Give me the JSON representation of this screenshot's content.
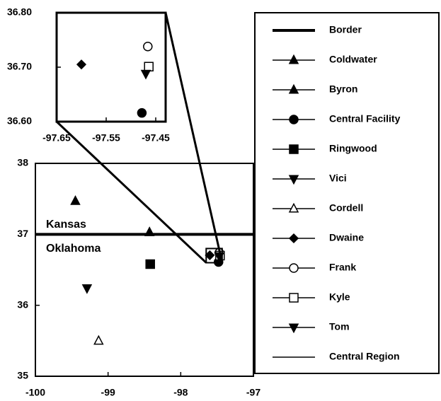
{
  "chart_data": [
    {
      "type": "scatter",
      "xlim": [
        -100,
        -97
      ],
      "ylim": [
        35,
        38
      ],
      "xticks": [
        -100,
        -99,
        -98,
        -97
      ],
      "yticks": [
        35,
        36,
        37,
        38
      ],
      "annotations": [
        "Kansas",
        "Oklahoma"
      ],
      "series": [
        {
          "name": "Border",
          "kind": "line",
          "color": "#000000",
          "x": [
            -100,
            -97
          ],
          "y": [
            37,
            37
          ]
        },
        {
          "name": "Coldwater",
          "marker": "triangle",
          "filled": true,
          "color": "#000000",
          "x": [
            -99.45
          ],
          "y": [
            37.47
          ]
        },
        {
          "name": "Byron",
          "marker": "triangle",
          "filled": true,
          "color": "#000000",
          "x": [
            -98.43
          ],
          "y": [
            37.03
          ]
        },
        {
          "name": "Central Facility",
          "marker": "circle",
          "filled": true,
          "color": "#000000",
          "x": [
            -97.48
          ],
          "y": [
            36.61
          ]
        },
        {
          "name": "Ringwood",
          "marker": "square",
          "filled": true,
          "color": "#000000",
          "x": [
            -98.42
          ],
          "y": [
            36.58
          ]
        },
        {
          "name": "Vici",
          "marker": "tridown",
          "filled": true,
          "color": "#000000",
          "x": [
            -99.29
          ],
          "y": [
            36.24
          ]
        },
        {
          "name": "Cordell",
          "marker": "triangle",
          "filled": false,
          "color": "#000000",
          "x": [
            -99.13
          ],
          "y": [
            35.5
          ]
        },
        {
          "name": "Dwaine",
          "marker": "diamond",
          "filled": true,
          "color": "#000000",
          "x": [
            -97.6
          ],
          "y": [
            36.705
          ]
        },
        {
          "name": "Frank",
          "marker": "circle",
          "filled": false,
          "color": "#000000",
          "x": [
            -97.47
          ],
          "y": [
            36.74
          ]
        },
        {
          "name": "Kyle",
          "marker": "square",
          "filled": false,
          "color": "#000000",
          "x": [
            -97.46
          ],
          "y": [
            36.7
          ]
        },
        {
          "name": "Tom",
          "marker": "tridown",
          "filled": true,
          "color": "#000000",
          "x": [
            -97.47
          ],
          "y": [
            36.69
          ]
        },
        {
          "name": "Central Region",
          "kind": "rect",
          "color": "#000000",
          "x": [
            -97.65,
            -97.43
          ],
          "y": [
            36.6,
            36.8
          ]
        }
      ]
    },
    {
      "type": "scatter",
      "xlim": [
        -97.65,
        -97.43
      ],
      "ylim": [
        36.6,
        36.8
      ],
      "xticks": [
        -97.65,
        -97.55,
        -97.45
      ],
      "yticks": [
        {
          "value": 36.6,
          "label": "36.60"
        },
        {
          "value": 36.7,
          "label": "36.70"
        },
        {
          "value": 36.8,
          "label": "36.80"
        }
      ],
      "series": [
        {
          "name": "Dwaine",
          "marker": "diamond",
          "filled": true,
          "color": "#000000",
          "x": [
            -97.6
          ],
          "y": [
            36.705
          ]
        },
        {
          "name": "Central Facility",
          "marker": "circle",
          "filled": true,
          "color": "#000000",
          "x": [
            -97.478
          ],
          "y": [
            36.616
          ]
        },
        {
          "name": "Frank",
          "marker": "circle",
          "filled": false,
          "color": "#000000",
          "x": [
            -97.466
          ],
          "y": [
            36.738
          ]
        },
        {
          "name": "Kyle",
          "marker": "square",
          "filled": false,
          "color": "#000000",
          "x": [
            -97.464
          ],
          "y": [
            36.701
          ]
        },
        {
          "name": "Tom",
          "marker": "tridown",
          "filled": true,
          "color": "#000000",
          "x": [
            -97.47
          ],
          "y": [
            36.688
          ]
        }
      ]
    }
  ]
}
